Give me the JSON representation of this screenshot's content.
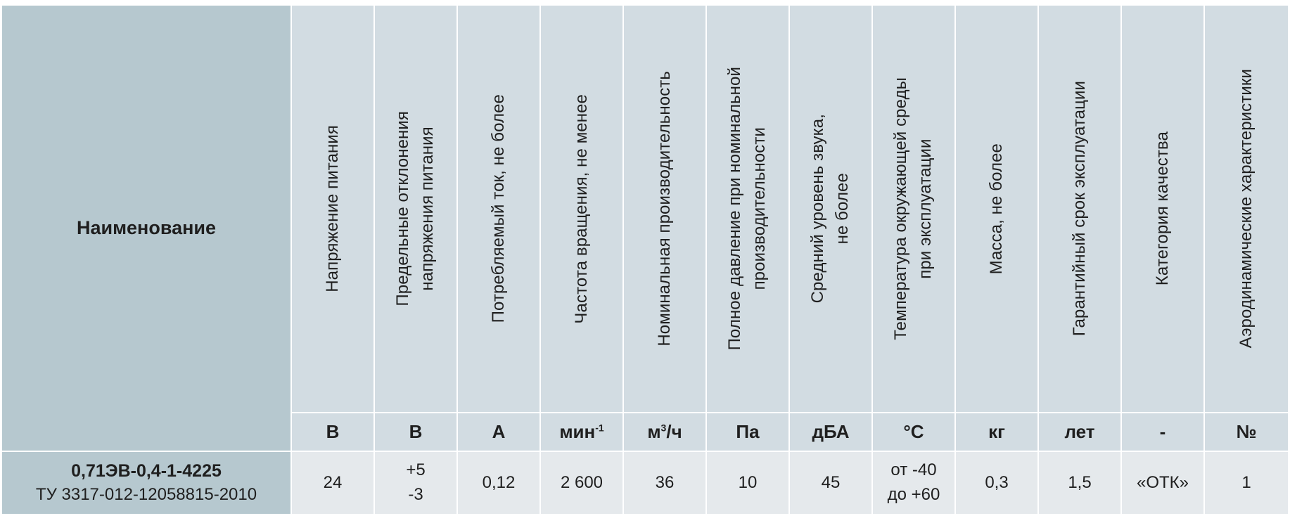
{
  "table": {
    "name_header": "Наименование",
    "columns": [
      {
        "title": "Напряжение  питания",
        "unit": "В",
        "value": "24"
      },
      {
        "title": "Предельные отклонения\nнапряжения питания",
        "unit": "В",
        "value": "+5\n-3"
      },
      {
        "title": "Потребляемый ток, не более",
        "unit": "А",
        "value": "0,12"
      },
      {
        "title": "Частота вращения, не менее",
        "unit_main": "мин",
        "unit_sup": "-1",
        "value": "2 600"
      },
      {
        "title": "Номинальная производительность",
        "unit_main": "м",
        "unit_sup": "3",
        "unit_tail": "/ч",
        "value": "36"
      },
      {
        "title": "Полное давление при номинальной\nпроизводительности",
        "unit": "Па",
        "value": "10"
      },
      {
        "title": "Средний уровень звука,\nне более",
        "unit": "дБА",
        "value": "45"
      },
      {
        "title": "Температура окружающей среды\nпри эксплуатации",
        "unit": "°С",
        "value": "от -40\nдо +60"
      },
      {
        "title": "Масса, не более",
        "unit": "кг",
        "value": "0,3"
      },
      {
        "title": "Гарантийный срок эксплуатации",
        "unit": "лет",
        "value": "1,5"
      },
      {
        "title": "Категория качества",
        "unit": "-",
        "value": "«ОТК»"
      },
      {
        "title": "Аэродинамические характеристики",
        "unit": "№",
        "value": "1"
      }
    ],
    "product": {
      "model": "0,71ЭВ-0,4-1-4225",
      "spec": "ТУ 3317-012-12058815-2010"
    },
    "colors": {
      "name_column": "#b6c8cf",
      "header": "#d2dce2",
      "values_row": "#e5e9ec"
    }
  }
}
